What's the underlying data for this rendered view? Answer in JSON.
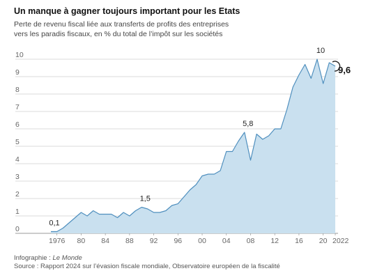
{
  "header": {
    "title": "Un manque à gagner toujours important pour les Etats",
    "subtitle_lines": [
      "Perte de revenu fiscal liée aux transferts de profits des entreprises",
      "vers les paradis fiscaux, en % du total de l’impôt sur les sociétés"
    ]
  },
  "footer": {
    "credit_prefix": "Infographie : ",
    "credit_name": "Le Monde",
    "source": "Source : Rapport 2024 sur l’évasion fiscale mondiale, Observatoire européen de la fiscalité"
  },
  "colors": {
    "area_fill": "#c9e0ef",
    "area_stroke": "#4f8fbe",
    "grid": "#cfcfcf",
    "tick_text": "#666666",
    "label_text": "#222222"
  },
  "chart_data": {
    "type": "area",
    "x": [
      1975,
      1976,
      1977,
      1978,
      1979,
      1980,
      1981,
      1982,
      1983,
      1984,
      1985,
      1986,
      1987,
      1988,
      1989,
      1990,
      1991,
      1992,
      1993,
      1994,
      1995,
      1996,
      1997,
      1998,
      1999,
      2000,
      2001,
      2002,
      2003,
      2004,
      2005,
      2006,
      2007,
      2008,
      2009,
      2010,
      2011,
      2012,
      2013,
      2014,
      2015,
      2016,
      2017,
      2018,
      2019,
      2020,
      2021,
      2022
    ],
    "values": [
      0.1,
      0.1,
      0.3,
      0.6,
      0.9,
      1.2,
      1.0,
      1.3,
      1.1,
      1.1,
      1.1,
      0.9,
      1.2,
      1.0,
      1.3,
      1.5,
      1.4,
      1.2,
      1.2,
      1.3,
      1.6,
      1.7,
      2.1,
      2.5,
      2.8,
      3.3,
      3.4,
      3.4,
      3.6,
      4.7,
      4.7,
      5.3,
      5.8,
      4.2,
      5.7,
      5.4,
      5.6,
      6.0,
      6.0,
      7.1,
      8.4,
      9.1,
      9.7,
      8.9,
      10.0,
      8.6,
      9.8,
      9.6
    ],
    "xlim": [
      1975,
      2022
    ],
    "ylim": [
      0,
      10
    ],
    "y_ticks": [
      0,
      1,
      2,
      3,
      4,
      5,
      6,
      7,
      8,
      9,
      10
    ],
    "x_ticks": [
      {
        "year": 1976,
        "label": "1976"
      },
      {
        "year": 1980,
        "label": "80"
      },
      {
        "year": 1984,
        "label": "84"
      },
      {
        "year": 1988,
        "label": "88"
      },
      {
        "year": 1992,
        "label": "92"
      },
      {
        "year": 1996,
        "label": "96"
      },
      {
        "year": 2000,
        "label": "00"
      },
      {
        "year": 2004,
        "label": "04"
      },
      {
        "year": 2008,
        "label": "08"
      },
      {
        "year": 2012,
        "label": "12"
      },
      {
        "year": 2016,
        "label": "16"
      },
      {
        "year": 2020,
        "label": "20"
      },
      {
        "year": 2022,
        "label": "2022"
      }
    ],
    "annotations": [
      {
        "year": 1975,
        "value": 0.1,
        "label": "0,1"
      },
      {
        "year": 1990,
        "value": 1.5,
        "label": "1,5"
      },
      {
        "year": 2007,
        "value": 5.8,
        "label": "5,8"
      },
      {
        "year": 2019,
        "value": 10.0,
        "label": "10"
      }
    ],
    "final_value": {
      "year": 2022,
      "value": 9.6,
      "label": "9,6"
    },
    "grid": true,
    "legend": "none"
  }
}
